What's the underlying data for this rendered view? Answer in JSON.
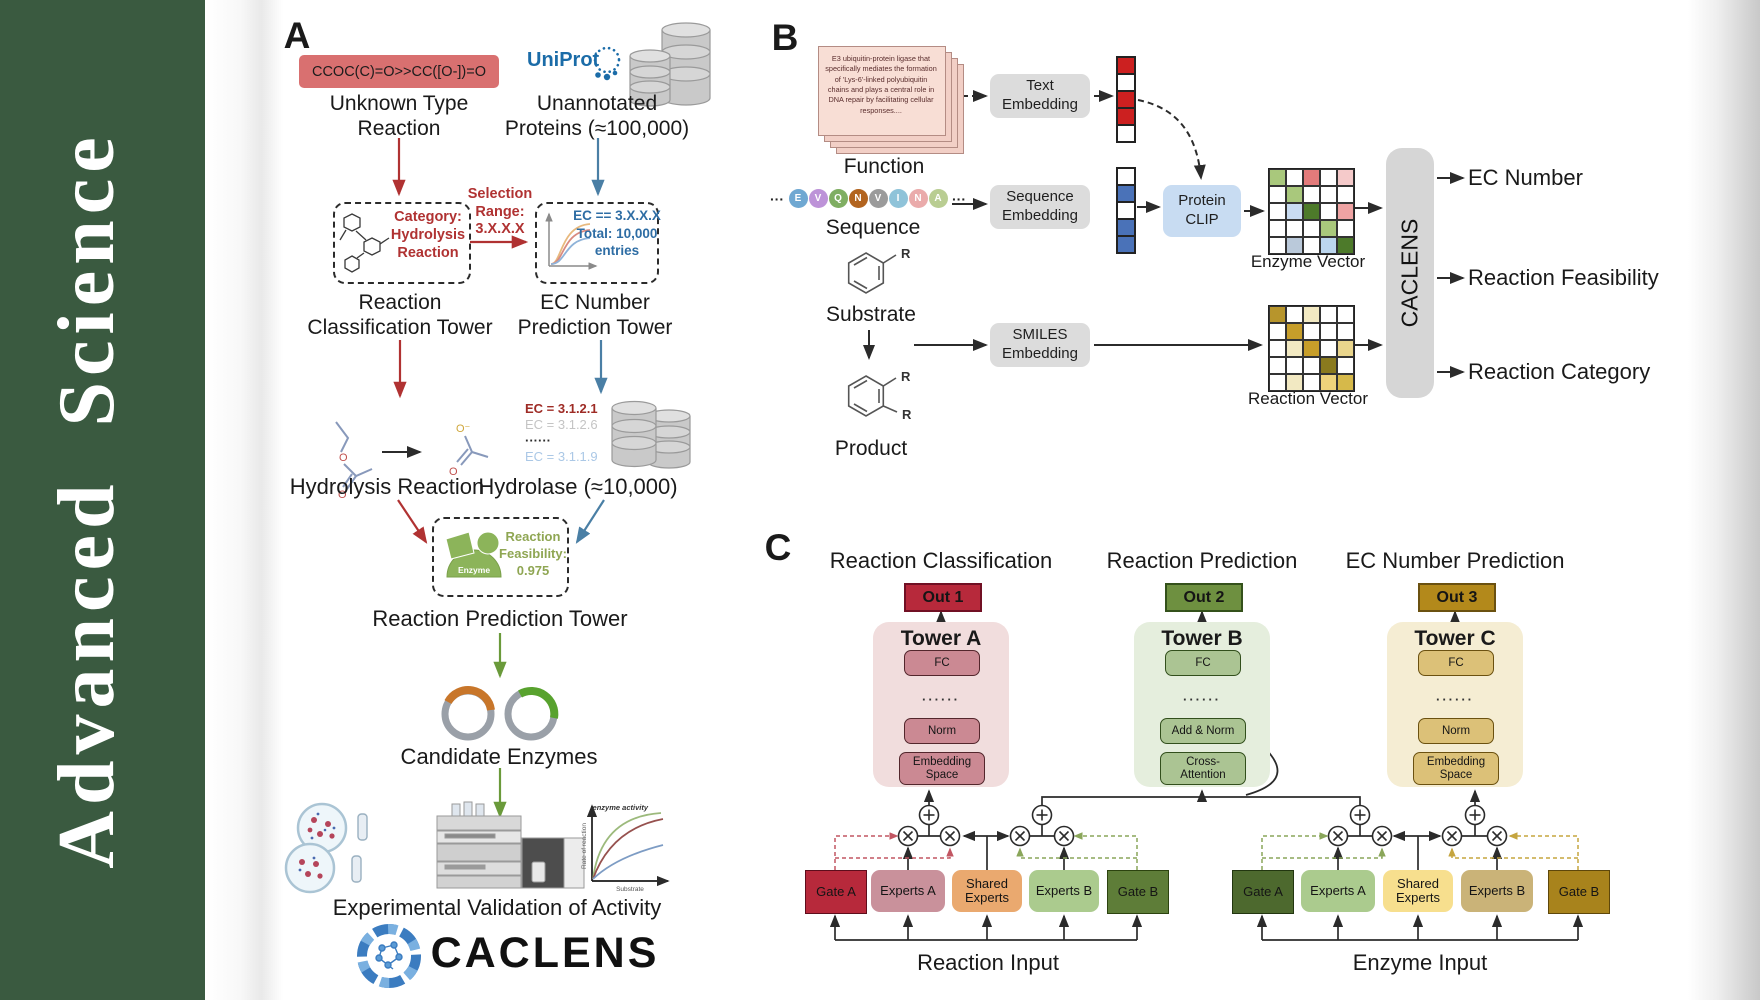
{
  "journal": {
    "name": "Advanced  Science"
  },
  "panelA": {
    "label": "A",
    "smiles": "CCOC(C)=O>>CC([O-])=O",
    "unknown_reaction_label": "Unknown Type\nReaction",
    "uniprot_label": "UniProt",
    "unannotated_label": "Unannotated\nProteins (≈100,000)",
    "selection_label": "Selection\nRange:\n3.X.X.X",
    "category_label": "Category:\nHydrolysis\nReaction",
    "ec_filter_label": "EC == 3.X.X.X\nTotal: 10,000\nentries",
    "classification_tower_label": "Reaction\nClassification Tower",
    "ec_tower_label": "EC Number\nPrediction Tower",
    "hydrolysis_label": "Hydrolysis Reaction",
    "hydrolase_label": "Hydrolase (≈10,000)",
    "ec_list": [
      {
        "text": "EC = 3.1.2.1",
        "color": "#9e2b25",
        "bold": true
      },
      {
        "text": "EC = 3.1.2.6",
        "color": "#c4c4c4",
        "bold": false
      },
      {
        "text": "······",
        "color": "#2b2b2b",
        "bold": true
      },
      {
        "text": "EC = 3.1.1.9",
        "color": "#abc8e6",
        "bold": false
      }
    ],
    "enzyme_label": "Enzyme",
    "feasibility_label": "Reaction\nFeasibility:\n0.975",
    "prediction_tower_label": "Reaction Prediction Tower",
    "candidate_label": "Candidate Enzymes",
    "validation_label": "Experimental Validation of Activity",
    "brand": "CACLENS",
    "activity_plot": {
      "ylabel": "Rate of reaction",
      "xlabel": "Substrate",
      "annotation": "enzyme activity"
    },
    "atoms": {
      "o": "O",
      "o_minus": "O⁻"
    }
  },
  "panelB": {
    "label": "B",
    "function_card_text": "E3 ubiquitin-protein ligase that specifically mediates the formation of 'Lys-6'-linked polyubiquitin chains and plays a central role in DNA repair by facilitating cellular responses....",
    "function_label": "Function",
    "ellipsis": "···",
    "sequence": [
      {
        "letter": "E",
        "color": "#6fa8d2"
      },
      {
        "letter": "V",
        "color": "#bd93d8"
      },
      {
        "letter": "Q",
        "color": "#7fae62"
      },
      {
        "letter": "N",
        "color": "#b2641f"
      },
      {
        "letter": "V",
        "color": "#9b9b9b"
      },
      {
        "letter": "I",
        "color": "#8fc3d9"
      },
      {
        "letter": "N",
        "color": "#eaabab"
      },
      {
        "letter": "A",
        "color": "#b9cd92"
      }
    ],
    "sequence_label": "Sequence",
    "substrate_label": "Substrate",
    "product_label": "Product",
    "r_label": "R",
    "text_embedding_label": "Text\nEmbedding",
    "sequence_embedding_label": "Sequence\nEmbedding",
    "smiles_embedding_label": "SMILES\nEmbedding",
    "protein_clip_label": "Protein\nCLIP",
    "enzyme_vector_label": "Enzyme Vector",
    "reaction_vector_label": "Reaction Vector",
    "caclens_label": "CACLENS",
    "outputs": [
      "EC Number",
      "Reaction Feasibility",
      "Reaction Category"
    ],
    "text_vector_cells": [
      "#cc2020",
      "#ffffff",
      "#cc2020",
      "#cc2020",
      "#ffffff"
    ],
    "seq_vector_cells": [
      "#ffffff",
      "#4a72b8",
      "#ffffff",
      "#4a72b8",
      "#4a72b8"
    ],
    "enzyme_matrix_cells": [
      "#a9c87c",
      "#ffffff",
      "#e37b7b",
      "#ffffff",
      "#f5caca",
      "#ffffff",
      "#a9c87c",
      "#ffffff",
      "#ffffff",
      "#ffffff",
      "#ffffff",
      "#c9dcf2",
      "#4d7a2a",
      "#ffffff",
      "#efa3a3",
      "#ffffff",
      "#ffffff",
      "#ffffff",
      "#a9c87c",
      "#ffffff",
      "#ffffff",
      "#bac9da",
      "#ffffff",
      "#bcd6ee",
      "#4d7a2a"
    ],
    "reaction_matrix_cells": [
      "#b7952c",
      "#ffffff",
      "#f2e9c2",
      "#ffffff",
      "#ffffff",
      "#ffffff",
      "#c79e2a",
      "#ffffff",
      "#ffffff",
      "#ffffff",
      "#ffffff",
      "#f2e9c2",
      "#c79e2a",
      "#ffffff",
      "#e9d58c",
      "#ffffff",
      "#ffffff",
      "#ffffff",
      "#8a7a1e",
      "#ffffff",
      "#ffffff",
      "#f2e9c2",
      "#ffffff",
      "#eed37b",
      "#d6b94a"
    ]
  },
  "panelC": {
    "label": "C",
    "task_titles": [
      "Reaction Classification",
      "Reaction Prediction",
      "EC Number Prediction"
    ],
    "towerA": {
      "out": "Out 1",
      "name": "Tower A",
      "fc": "FC",
      "dots": "······",
      "norm": "Norm",
      "embedding": "Embedding\nSpace"
    },
    "towerB": {
      "out": "Out 2",
      "name": "Tower B",
      "fc": "FC",
      "dots": "······",
      "addnorm": "Add & Norm",
      "cross": "Cross-\nAttention"
    },
    "towerC": {
      "out": "Out 3",
      "name": "Tower C",
      "fc": "FC",
      "dots": "······",
      "norm": "Norm",
      "embedding": "Embedding\nSpace"
    },
    "moe_reaction": {
      "gate_a": "Gate A",
      "experts_a": "Experts A",
      "shared": "Shared\nExperts",
      "experts_b": "Experts B",
      "gate_b": "Gate B",
      "input_label": "Reaction Input"
    },
    "moe_enzyme": {
      "gate_a": "Gate A",
      "experts_a": "Experts A",
      "shared": "Shared\nExperts",
      "experts_b": "Experts B",
      "gate_b": "Gate B",
      "input_label": "Enzyme Input"
    },
    "colors": {
      "out1": "#b7293b",
      "out2": "#6e9040",
      "out3": "#b3891b"
    }
  }
}
